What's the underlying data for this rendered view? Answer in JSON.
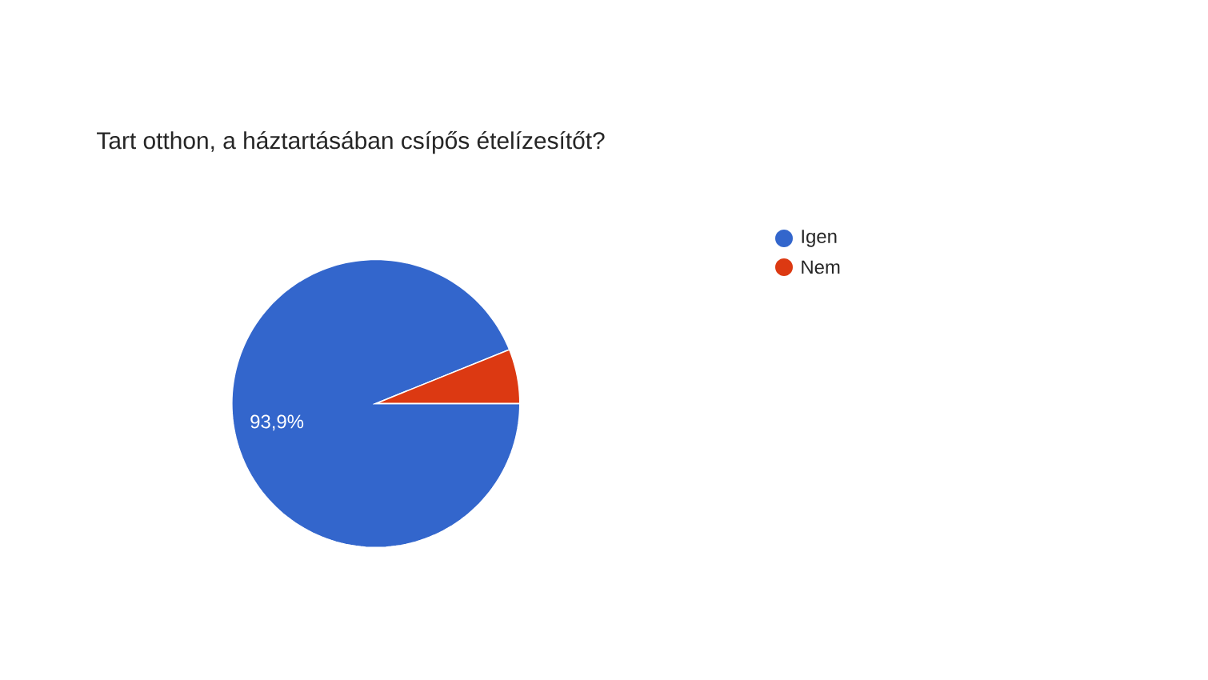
{
  "chart_data": {
    "type": "pie",
    "title": "Tart otthon, a háztartásában csípős ételízesítőt?",
    "categories": [
      "Igen",
      "Nem"
    ],
    "values": [
      93.9,
      6.1
    ],
    "colors": [
      "#3366cc",
      "#dc3912"
    ],
    "value_labels": [
      "93,9%",
      null
    ],
    "legend": "right"
  }
}
